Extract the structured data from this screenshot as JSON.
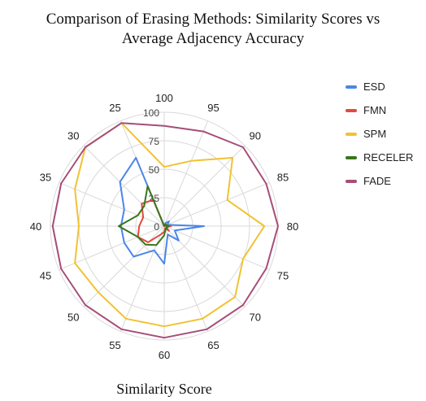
{
  "chart_data": {
    "type": "radar",
    "title_line1": "Comparison of Erasing Methods: Similarity Scores vs",
    "title_line2": "Average Adjacency Accuracy",
    "xlabel": "Similarity Score",
    "categories": [
      "100",
      "95",
      "90",
      "85",
      "80",
      "75",
      "70",
      "65",
      "60",
      "55",
      "50",
      "45",
      "40",
      "35",
      "30",
      "25"
    ],
    "radial_ticks": [
      "0",
      "25",
      "50",
      "75",
      "100"
    ],
    "rlim": [
      0,
      100
    ],
    "grid": true,
    "legend_position": "right",
    "series": [
      {
        "name": "ESD",
        "color": "#4a86e8",
        "values": [
          0,
          3,
          6,
          3,
          35,
          10,
          18,
          8,
          33,
          23,
          38,
          38,
          38,
          38,
          55,
          65
        ]
      },
      {
        "name": "FMN",
        "color": "#e24a3b",
        "values": [
          0,
          2,
          2,
          1,
          6,
          2,
          6,
          2,
          5,
          8,
          20,
          25,
          22,
          20,
          28,
          25
        ]
      },
      {
        "name": "SPM",
        "color": "#f1c232",
        "values": [
          52,
          62,
          85,
          60,
          88,
          75,
          88,
          88,
          88,
          88,
          82,
          85,
          75,
          85,
          98,
          98
        ]
      },
      {
        "name": "RECELER",
        "color": "#38761d",
        "values": [
          0,
          1,
          2,
          2,
          4,
          2,
          3,
          3,
          8,
          18,
          23,
          25,
          40,
          25,
          25,
          38
        ]
      },
      {
        "name": "FADE",
        "color": "#a64d79",
        "values": [
          88,
          90,
          98,
          97,
          100,
          97,
          98,
          98,
          98,
          98,
          98,
          98,
          98,
          98,
          98,
          98
        ]
      }
    ]
  }
}
